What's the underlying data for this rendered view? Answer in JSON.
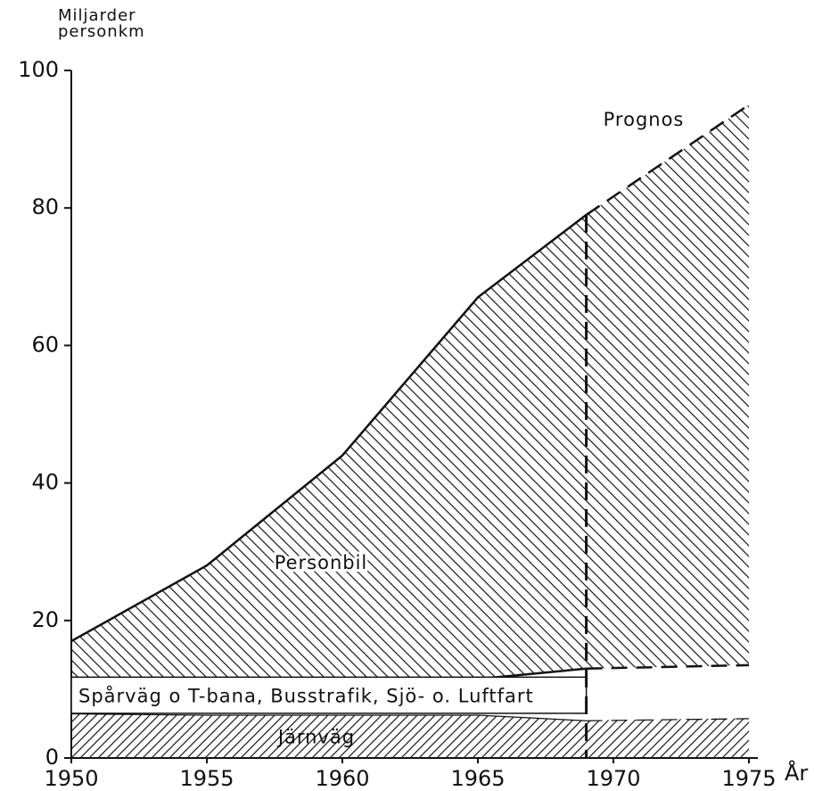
{
  "chart_data": {
    "type": "stacked_area",
    "y_label": "Miljarder personkm",
    "x_label": "År",
    "x": [
      1950,
      1955,
      1960,
      1965,
      1969,
      1975
    ],
    "series": [
      {
        "name": "Järnväg",
        "pattern": "forward-hatch",
        "values": [
          6.5,
          6.3,
          6.3,
          6.3,
          5.5,
          5.8
        ]
      },
      {
        "name": "Spårväg o T-bana, Busstrafik, Sjö- o. Luftfart",
        "pattern": "none",
        "values": [
          5,
          5.2,
          4.2,
          5.2,
          7.5,
          7.7
        ]
      },
      {
        "name": "Personbil",
        "pattern": "back-hatch",
        "values": [
          5.5,
          16.5,
          33.5,
          55.5,
          66,
          81.5
        ]
      }
    ],
    "forecast_start": 1969,
    "forecast_label": "Prognos",
    "xlim": [
      1950,
      1975
    ],
    "xticks": [
      1950,
      1955,
      1960,
      1965,
      1970,
      1975
    ],
    "ylim": [
      0,
      100
    ],
    "yticks": [
      0,
      20,
      40,
      60,
      80,
      100
    ]
  }
}
